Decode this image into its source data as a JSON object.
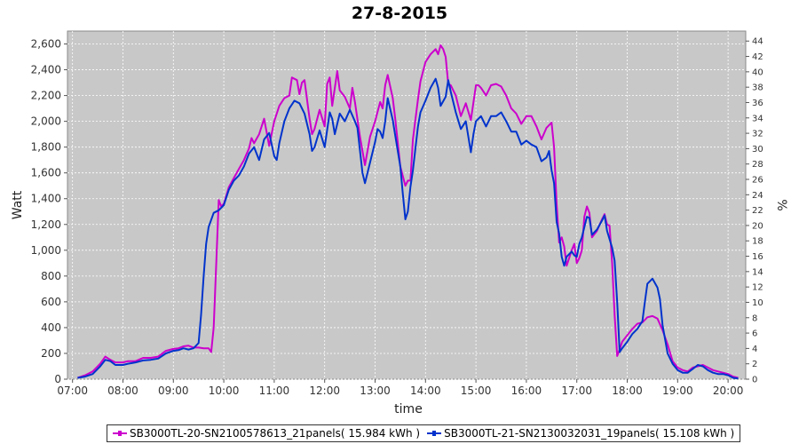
{
  "chart_data": {
    "type": "line",
    "title": "27-8-2015",
    "xlabel": "time",
    "ylabel": "Watt",
    "y2label": "%",
    "xlim": [
      6.9,
      20.35
    ],
    "ylim": [
      0,
      2700
    ],
    "y2lim": [
      0,
      45.3
    ],
    "x_ticks": [
      "07:00",
      "08:00",
      "09:00",
      "10:00",
      "11:00",
      "12:00",
      "13:00",
      "14:00",
      "15:00",
      "16:00",
      "17:00",
      "18:00",
      "19:00",
      "20:00"
    ],
    "y_ticks": [
      "0",
      "200",
      "400",
      "600",
      "800",
      "1,000",
      "1,200",
      "1,400",
      "1,600",
      "1,800",
      "2,000",
      "2,200",
      "2,400",
      "2,600"
    ],
    "y2_ticks": [
      "0",
      "2",
      "4",
      "6",
      "8",
      "10",
      "12",
      "14",
      "16",
      "18",
      "20",
      "22",
      "24",
      "26",
      "28",
      "30",
      "32",
      "34",
      "36",
      "38",
      "40",
      "42",
      "44"
    ],
    "grid": true,
    "legend_position": "bottom",
    "series": [
      {
        "name": "SB3000TL-20-SN2100578613_21panels( 15.984 kWh )",
        "color": "#cc00cc",
        "points": [
          [
            7.1,
            10
          ],
          [
            7.25,
            30
          ],
          [
            7.4,
            60
          ],
          [
            7.55,
            120
          ],
          [
            7.65,
            175
          ],
          [
            7.75,
            150
          ],
          [
            7.85,
            130
          ],
          [
            8.0,
            130
          ],
          [
            8.1,
            140
          ],
          [
            8.25,
            140
          ],
          [
            8.4,
            165
          ],
          [
            8.55,
            165
          ],
          [
            8.7,
            175
          ],
          [
            8.85,
            220
          ],
          [
            9.0,
            235
          ],
          [
            9.1,
            240
          ],
          [
            9.2,
            255
          ],
          [
            9.3,
            260
          ],
          [
            9.4,
            245
          ],
          [
            9.5,
            245
          ],
          [
            9.6,
            240
          ],
          [
            9.7,
            240
          ],
          [
            9.75,
            210
          ],
          [
            9.8,
            400
          ],
          [
            9.85,
            900
          ],
          [
            9.9,
            1390
          ],
          [
            9.95,
            1340
          ],
          [
            10.0,
            1360
          ],
          [
            10.1,
            1490
          ],
          [
            10.2,
            1560
          ],
          [
            10.3,
            1630
          ],
          [
            10.4,
            1700
          ],
          [
            10.5,
            1790
          ],
          [
            10.55,
            1870
          ],
          [
            10.6,
            1830
          ],
          [
            10.7,
            1900
          ],
          [
            10.8,
            2020
          ],
          [
            10.9,
            1810
          ],
          [
            11.0,
            2000
          ],
          [
            11.1,
            2120
          ],
          [
            11.2,
            2180
          ],
          [
            11.3,
            2200
          ],
          [
            11.35,
            2340
          ],
          [
            11.45,
            2320
          ],
          [
            11.5,
            2210
          ],
          [
            11.55,
            2300
          ],
          [
            11.6,
            2320
          ],
          [
            11.7,
            2020
          ],
          [
            11.75,
            1900
          ],
          [
            11.8,
            1940
          ],
          [
            11.9,
            2090
          ],
          [
            12.0,
            1960
          ],
          [
            12.05,
            2290
          ],
          [
            12.1,
            2340
          ],
          [
            12.15,
            2120
          ],
          [
            12.25,
            2390
          ],
          [
            12.3,
            2240
          ],
          [
            12.4,
            2190
          ],
          [
            12.5,
            2100
          ],
          [
            12.55,
            2260
          ],
          [
            12.6,
            2150
          ],
          [
            12.7,
            1880
          ],
          [
            12.8,
            1660
          ],
          [
            12.9,
            1880
          ],
          [
            13.0,
            2000
          ],
          [
            13.1,
            2150
          ],
          [
            13.15,
            2100
          ],
          [
            13.2,
            2280
          ],
          [
            13.25,
            2360
          ],
          [
            13.35,
            2180
          ],
          [
            13.4,
            2020
          ],
          [
            13.5,
            1650
          ],
          [
            13.6,
            1500
          ],
          [
            13.65,
            1540
          ],
          [
            13.7,
            1540
          ],
          [
            13.75,
            1860
          ],
          [
            13.85,
            2170
          ],
          [
            13.9,
            2310
          ],
          [
            14.0,
            2460
          ],
          [
            14.1,
            2520
          ],
          [
            14.2,
            2560
          ],
          [
            14.25,
            2520
          ],
          [
            14.3,
            2590
          ],
          [
            14.35,
            2560
          ],
          [
            14.4,
            2500
          ],
          [
            14.45,
            2290
          ],
          [
            14.5,
            2280
          ],
          [
            14.6,
            2200
          ],
          [
            14.7,
            2040
          ],
          [
            14.8,
            2140
          ],
          [
            14.9,
            2010
          ],
          [
            15.0,
            2280
          ],
          [
            15.05,
            2280
          ],
          [
            15.1,
            2260
          ],
          [
            15.2,
            2200
          ],
          [
            15.3,
            2280
          ],
          [
            15.4,
            2290
          ],
          [
            15.5,
            2270
          ],
          [
            15.6,
            2200
          ],
          [
            15.7,
            2100
          ],
          [
            15.8,
            2060
          ],
          [
            15.9,
            1980
          ],
          [
            16.0,
            2040
          ],
          [
            16.1,
            2040
          ],
          [
            16.2,
            1960
          ],
          [
            16.3,
            1860
          ],
          [
            16.4,
            1950
          ],
          [
            16.5,
            1990
          ],
          [
            16.55,
            1800
          ],
          [
            16.6,
            1360
          ],
          [
            16.65,
            1060
          ],
          [
            16.7,
            1100
          ],
          [
            16.75,
            1030
          ],
          [
            16.8,
            880
          ],
          [
            16.9,
            1000
          ],
          [
            16.95,
            1050
          ],
          [
            17.0,
            900
          ],
          [
            17.05,
            940
          ],
          [
            17.1,
            1000
          ],
          [
            17.15,
            1260
          ],
          [
            17.2,
            1340
          ],
          [
            17.25,
            1290
          ],
          [
            17.3,
            1100
          ],
          [
            17.4,
            1150
          ],
          [
            17.5,
            1240
          ],
          [
            17.55,
            1280
          ],
          [
            17.6,
            1200
          ],
          [
            17.65,
            1190
          ],
          [
            17.7,
            900
          ],
          [
            17.75,
            500
          ],
          [
            17.8,
            180
          ],
          [
            17.85,
            230
          ],
          [
            17.9,
            290
          ],
          [
            18.0,
            340
          ],
          [
            18.1,
            390
          ],
          [
            18.2,
            430
          ],
          [
            18.3,
            440
          ],
          [
            18.4,
            480
          ],
          [
            18.5,
            490
          ],
          [
            18.6,
            470
          ],
          [
            18.7,
            380
          ],
          [
            18.8,
            270
          ],
          [
            18.9,
            140
          ],
          [
            19.0,
            90
          ],
          [
            19.1,
            70
          ],
          [
            19.2,
            60
          ],
          [
            19.3,
            90
          ],
          [
            19.4,
            100
          ],
          [
            19.5,
            110
          ],
          [
            19.6,
            90
          ],
          [
            19.7,
            70
          ],
          [
            19.8,
            60
          ],
          [
            19.9,
            50
          ],
          [
            20.0,
            40
          ],
          [
            20.1,
            20
          ],
          [
            20.2,
            10
          ]
        ]
      },
      {
        "name": "SB3000TL-21-SN2130032031_19panels( 15.108 kWh )",
        "color": "#0033cc",
        "points": [
          [
            7.1,
            10
          ],
          [
            7.25,
            20
          ],
          [
            7.4,
            40
          ],
          [
            7.55,
            100
          ],
          [
            7.65,
            150
          ],
          [
            7.75,
            140
          ],
          [
            7.85,
            110
          ],
          [
            8.0,
            110
          ],
          [
            8.1,
            120
          ],
          [
            8.25,
            130
          ],
          [
            8.4,
            145
          ],
          [
            8.55,
            150
          ],
          [
            8.7,
            160
          ],
          [
            8.85,
            200
          ],
          [
            9.0,
            220
          ],
          [
            9.1,
            225
          ],
          [
            9.2,
            240
          ],
          [
            9.3,
            230
          ],
          [
            9.4,
            240
          ],
          [
            9.5,
            280
          ],
          [
            9.55,
            500
          ],
          [
            9.6,
            800
          ],
          [
            9.65,
            1050
          ],
          [
            9.7,
            1180
          ],
          [
            9.8,
            1290
          ],
          [
            9.9,
            1310
          ],
          [
            10.0,
            1350
          ],
          [
            10.1,
            1470
          ],
          [
            10.2,
            1540
          ],
          [
            10.3,
            1580
          ],
          [
            10.4,
            1650
          ],
          [
            10.5,
            1750
          ],
          [
            10.6,
            1800
          ],
          [
            10.7,
            1700
          ],
          [
            10.8,
            1860
          ],
          [
            10.9,
            1910
          ],
          [
            11.0,
            1730
          ],
          [
            11.05,
            1700
          ],
          [
            11.1,
            1830
          ],
          [
            11.2,
            2000
          ],
          [
            11.3,
            2100
          ],
          [
            11.4,
            2160
          ],
          [
            11.5,
            2140
          ],
          [
            11.6,
            2060
          ],
          [
            11.7,
            1900
          ],
          [
            11.75,
            1770
          ],
          [
            11.8,
            1800
          ],
          [
            11.9,
            1930
          ],
          [
            12.0,
            1800
          ],
          [
            12.1,
            2070
          ],
          [
            12.15,
            2020
          ],
          [
            12.2,
            1900
          ],
          [
            12.3,
            2060
          ],
          [
            12.4,
            2000
          ],
          [
            12.5,
            2090
          ],
          [
            12.6,
            2000
          ],
          [
            12.65,
            1950
          ],
          [
            12.75,
            1600
          ],
          [
            12.8,
            1520
          ],
          [
            12.9,
            1680
          ],
          [
            13.0,
            1840
          ],
          [
            13.05,
            1940
          ],
          [
            13.1,
            1920
          ],
          [
            13.15,
            1870
          ],
          [
            13.2,
            2000
          ],
          [
            13.25,
            2180
          ],
          [
            13.35,
            2010
          ],
          [
            13.4,
            1890
          ],
          [
            13.5,
            1650
          ],
          [
            13.55,
            1440
          ],
          [
            13.6,
            1240
          ],
          [
            13.65,
            1300
          ],
          [
            13.7,
            1490
          ],
          [
            13.75,
            1620
          ],
          [
            13.85,
            1960
          ],
          [
            13.9,
            2070
          ],
          [
            14.0,
            2160
          ],
          [
            14.1,
            2260
          ],
          [
            14.2,
            2330
          ],
          [
            14.25,
            2260
          ],
          [
            14.3,
            2120
          ],
          [
            14.4,
            2190
          ],
          [
            14.45,
            2320
          ],
          [
            14.5,
            2230
          ],
          [
            14.6,
            2070
          ],
          [
            14.7,
            1940
          ],
          [
            14.8,
            2000
          ],
          [
            14.9,
            1760
          ],
          [
            14.95,
            1900
          ],
          [
            15.0,
            2000
          ],
          [
            15.1,
            2040
          ],
          [
            15.2,
            1960
          ],
          [
            15.3,
            2040
          ],
          [
            15.4,
            2040
          ],
          [
            15.5,
            2070
          ],
          [
            15.6,
            2000
          ],
          [
            15.7,
            1920
          ],
          [
            15.8,
            1920
          ],
          [
            15.9,
            1820
          ],
          [
            16.0,
            1850
          ],
          [
            16.1,
            1820
          ],
          [
            16.2,
            1800
          ],
          [
            16.3,
            1690
          ],
          [
            16.4,
            1720
          ],
          [
            16.45,
            1770
          ],
          [
            16.5,
            1620
          ],
          [
            16.55,
            1520
          ],
          [
            16.6,
            1220
          ],
          [
            16.65,
            1130
          ],
          [
            16.7,
            950
          ],
          [
            16.75,
            880
          ],
          [
            16.8,
            950
          ],
          [
            16.9,
            990
          ],
          [
            16.95,
            960
          ],
          [
            17.0,
            950
          ],
          [
            17.05,
            1050
          ],
          [
            17.1,
            1100
          ],
          [
            17.2,
            1260
          ],
          [
            17.25,
            1250
          ],
          [
            17.3,
            1120
          ],
          [
            17.4,
            1160
          ],
          [
            17.5,
            1230
          ],
          [
            17.55,
            1270
          ],
          [
            17.6,
            1150
          ],
          [
            17.7,
            1020
          ],
          [
            17.75,
            920
          ],
          [
            17.8,
            600
          ],
          [
            17.85,
            210
          ],
          [
            17.9,
            240
          ],
          [
            18.0,
            290
          ],
          [
            18.1,
            350
          ],
          [
            18.2,
            390
          ],
          [
            18.3,
            450
          ],
          [
            18.35,
            600
          ],
          [
            18.4,
            740
          ],
          [
            18.5,
            780
          ],
          [
            18.6,
            710
          ],
          [
            18.65,
            620
          ],
          [
            18.7,
            420
          ],
          [
            18.8,
            200
          ],
          [
            18.9,
            120
          ],
          [
            19.0,
            70
          ],
          [
            19.1,
            50
          ],
          [
            19.2,
            50
          ],
          [
            19.3,
            80
          ],
          [
            19.4,
            110
          ],
          [
            19.5,
            100
          ],
          [
            19.6,
            70
          ],
          [
            19.7,
            50
          ],
          [
            19.8,
            40
          ],
          [
            19.9,
            40
          ],
          [
            20.0,
            30
          ],
          [
            20.1,
            10
          ],
          [
            20.2,
            5
          ]
        ]
      }
    ]
  }
}
